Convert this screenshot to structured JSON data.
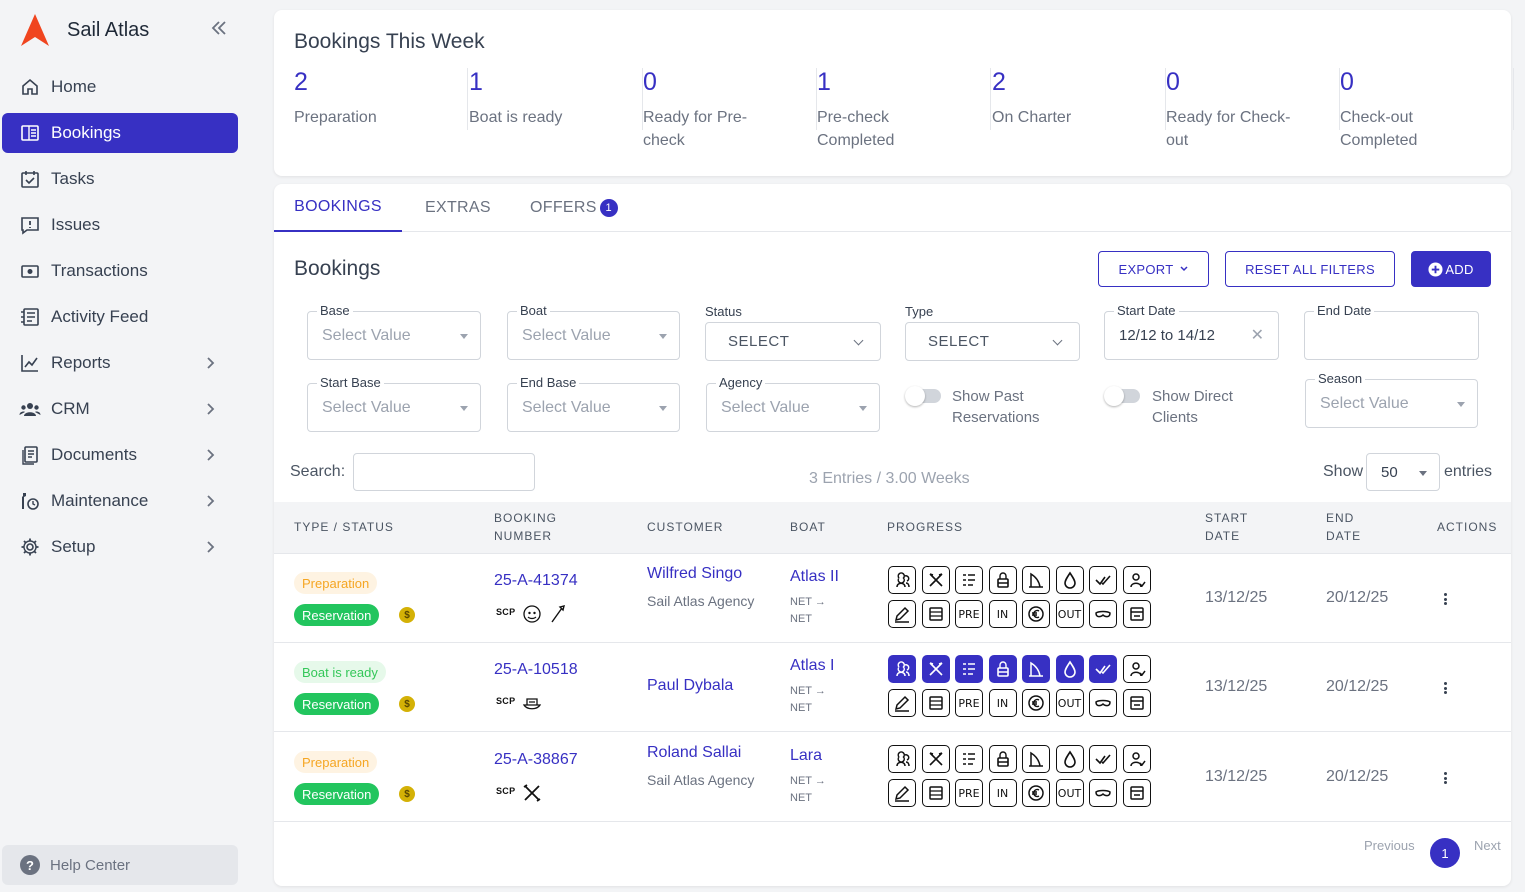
{
  "app": {
    "name": "Sail Atlas"
  },
  "sidebar": {
    "items": [
      {
        "label": "Home",
        "icon": "home-icon"
      },
      {
        "label": "Bookings",
        "icon": "bookings-icon",
        "active": true
      },
      {
        "label": "Tasks",
        "icon": "tasks-icon"
      },
      {
        "label": "Issues",
        "icon": "issues-icon"
      },
      {
        "label": "Transactions",
        "icon": "transactions-icon"
      },
      {
        "label": "Activity Feed",
        "icon": "activity-feed-icon"
      },
      {
        "label": "Reports",
        "icon": "reports-icon",
        "expandable": true
      },
      {
        "label": "CRM",
        "icon": "crm-icon",
        "expandable": true
      },
      {
        "label": "Documents",
        "icon": "documents-icon",
        "expandable": true
      },
      {
        "label": "Maintenance",
        "icon": "maintenance-icon",
        "expandable": true
      },
      {
        "label": "Setup",
        "icon": "gear-icon",
        "expandable": true
      }
    ],
    "help": "Help Center"
  },
  "stats": {
    "title": "Bookings This Week",
    "items": [
      {
        "value": "2",
        "label": "Preparation"
      },
      {
        "value": "1",
        "label": "Boat is ready"
      },
      {
        "value": "0",
        "label": "Ready for Pre-check"
      },
      {
        "value": "1",
        "label": "Pre-check Completed"
      },
      {
        "value": "2",
        "label": "On Charter"
      },
      {
        "value": "0",
        "label": "Ready for Check-out"
      },
      {
        "value": "0",
        "label": "Check-out Completed"
      }
    ]
  },
  "tabs": [
    {
      "label": "BOOKINGS",
      "active": true
    },
    {
      "label": "EXTRAS"
    },
    {
      "label": "OFFERS",
      "badge": "1"
    }
  ],
  "section": {
    "title": "Bookings",
    "export": "EXPORT",
    "reset": "RESET ALL FILTERS",
    "add": "ADD"
  },
  "filters": {
    "base": {
      "label": "Base",
      "placeholder": "Select Value"
    },
    "boat": {
      "label": "Boat",
      "placeholder": "Select Value"
    },
    "status": {
      "label": "Status",
      "value": "SELECT"
    },
    "type": {
      "label": "Type",
      "value": "SELECT"
    },
    "start_date": {
      "label": "Start Date",
      "value": "12/12 to 14/12"
    },
    "end_date": {
      "label": "End Date",
      "value": ""
    },
    "start_base": {
      "label": "Start Base",
      "placeholder": "Select Value"
    },
    "end_base": {
      "label": "End Base",
      "placeholder": "Select Value"
    },
    "agency": {
      "label": "Agency",
      "placeholder": "Select Value"
    },
    "show_past": {
      "label": "Show Past Reservations",
      "on": false
    },
    "show_direct": {
      "label": "Show Direct Clients",
      "on": false
    },
    "season": {
      "label": "Season",
      "placeholder": "Select Value"
    }
  },
  "table_controls": {
    "search_label": "Search:",
    "search_value": "",
    "entries_info": "3 Entries / 3.00 Weeks",
    "show_label": "Show",
    "page_size": "50",
    "entries_label": "entries"
  },
  "table": {
    "headers": {
      "type_status": "TYPE / STATUS",
      "booking_number": "BOOKING NUMBER",
      "customer": "CUSTOMER",
      "boat": "BOAT",
      "progress": "PROGRESS",
      "start_date": "START DATE",
      "end_date": "END DATE",
      "actions": "ACTIONS"
    },
    "rows": [
      {
        "status": "Preparation",
        "type": "Reservation",
        "booking_number": "25-A-41374",
        "tag": "SCP",
        "customer": "Wilfred Singo",
        "agency": "Sail Atlas Agency",
        "boat": "Atlas II",
        "net": "NET → NET",
        "start": "13/12/25",
        "end": "20/12/25"
      },
      {
        "status": "Boat is ready",
        "type": "Reservation",
        "booking_number": "25-A-10518",
        "tag": "SCP",
        "customer": "Paul Dybala",
        "agency": "",
        "boat": "Atlas I",
        "net": "NET → NET",
        "start": "13/12/25",
        "end": "20/12/25"
      },
      {
        "status": "Preparation",
        "type": "Reservation",
        "booking_number": "25-A-38867",
        "tag": "SCP",
        "customer": "Roland Sallai",
        "agency": "Sail Atlas Agency",
        "boat": "Lara",
        "net": "NET → NET",
        "start": "13/12/25",
        "end": "20/12/25"
      }
    ],
    "progress_labels": {
      "pre": "PRE",
      "in": "IN",
      "out": "OUT"
    }
  },
  "pagination": {
    "previous": "Previous",
    "page": "1",
    "next": "Next"
  },
  "colors": {
    "accent": "#3730c3",
    "success": "#22c55e",
    "warning": "#f5a623"
  }
}
